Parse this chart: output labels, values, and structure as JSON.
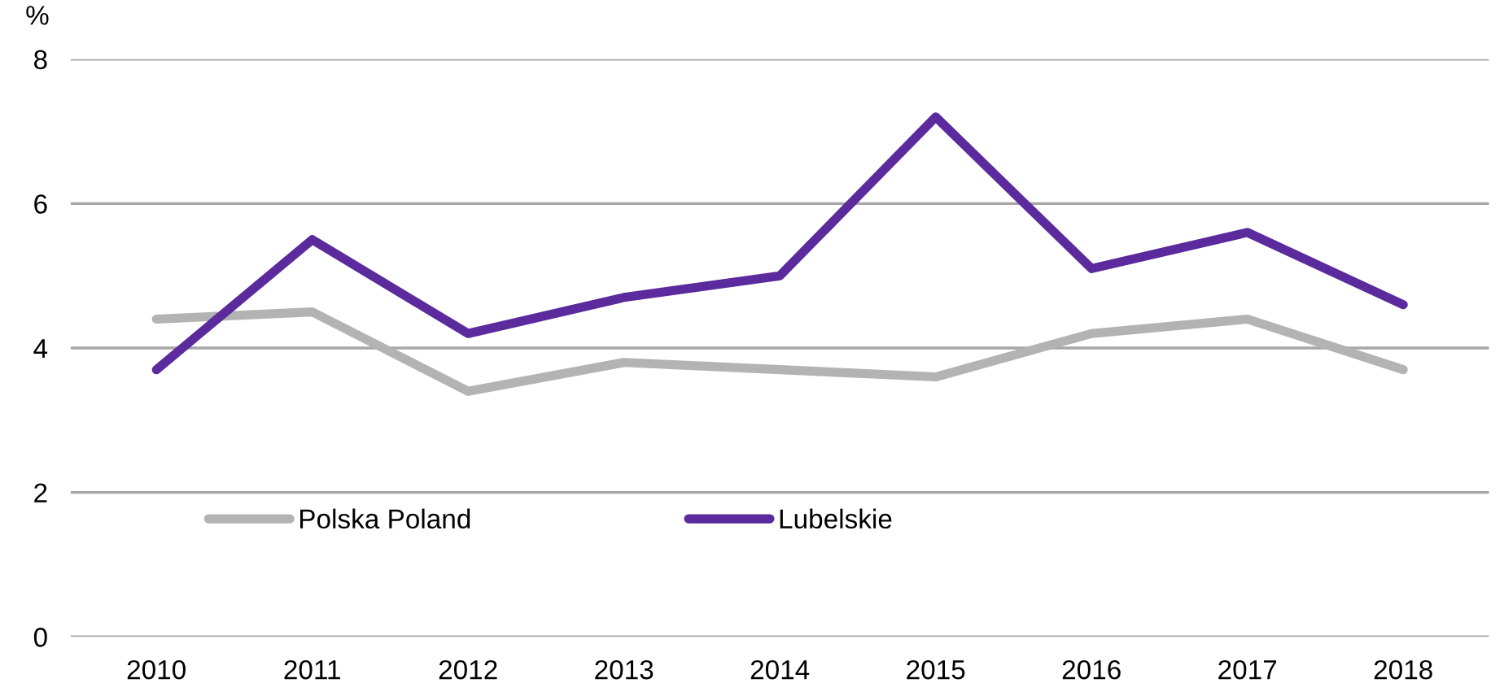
{
  "chart_data": {
    "type": "line",
    "ylabel": "%",
    "categories": [
      "2010",
      "2011",
      "2012",
      "2013",
      "2014",
      "2015",
      "2016",
      "2017",
      "2018"
    ],
    "series": [
      {
        "name": "Polska Poland",
        "color": "#b3b3b3",
        "values": [
          4.4,
          4.5,
          3.4,
          3.8,
          3.7,
          3.6,
          4.2,
          4.4,
          3.7
        ]
      },
      {
        "name": "Lubelskie",
        "color": "#5b2a9c",
        "values": [
          3.7,
          5.5,
          4.2,
          4.7,
          5.0,
          7.2,
          5.1,
          5.6,
          4.6
        ]
      }
    ],
    "ylim": [
      0,
      8
    ],
    "yticks": [
      0,
      2,
      4,
      6,
      8
    ],
    "grid": "y",
    "legend": "bottom left",
    "marker": "none",
    "line_style": "solid"
  }
}
